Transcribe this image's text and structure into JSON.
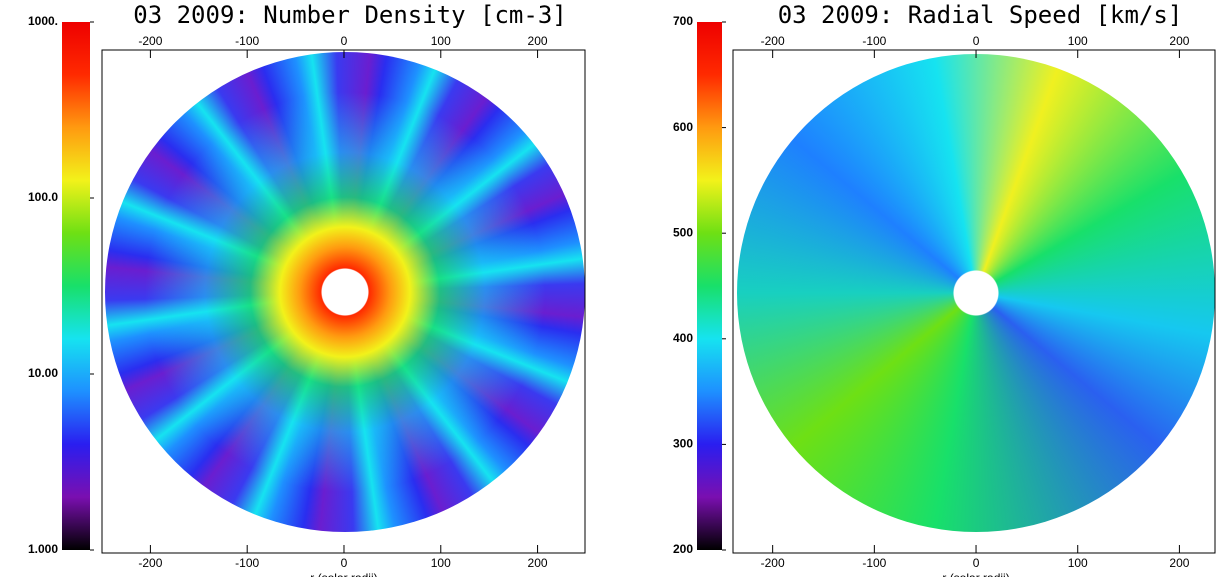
{
  "chart_data": [
    {
      "type": "polar-map",
      "title": "03 2009: Number Density [cm-3]",
      "xlabel": "r (solar radii)",
      "xlim": [
        -250,
        249
      ],
      "xticks": [
        -200,
        -100,
        0,
        100,
        200
      ],
      "colorbar": {
        "scale": "log",
        "lim": [
          1,
          1000
        ],
        "ticks": [
          {
            "value": 1,
            "label": "1.000"
          },
          {
            "value": 10,
            "label": "10.00"
          },
          {
            "value": 100,
            "label": "100.0"
          },
          {
            "value": 1000,
            "label": "1000."
          }
        ],
        "colormap": [
          "#000000",
          "#7a0fb0",
          "#2a1ef0",
          "#1e90ff",
          "#16e3f0",
          "#18e06a",
          "#6ee014",
          "#f2f21a",
          "#ff9a10",
          "#ff2a00",
          "#ee0000"
        ]
      }
    },
    {
      "type": "polar-map",
      "title": "03 2009: Radial Speed [km/s]",
      "xlabel": "r (solar radii)",
      "xlim": [
        -239,
        235
      ],
      "xticks": [
        -200,
        -100,
        0,
        100,
        200
      ],
      "colorbar": {
        "scale": "linear",
        "lim": [
          200,
          700
        ],
        "ticks": [
          200,
          300,
          400,
          500,
          600,
          700
        ],
        "colormap": [
          "#000000",
          "#7a0fb0",
          "#2a1ef0",
          "#1e90ff",
          "#16e3f0",
          "#18e06a",
          "#6ee014",
          "#f2f21a",
          "#ff9a10",
          "#ff2a00",
          "#ee0000"
        ]
      }
    }
  ]
}
